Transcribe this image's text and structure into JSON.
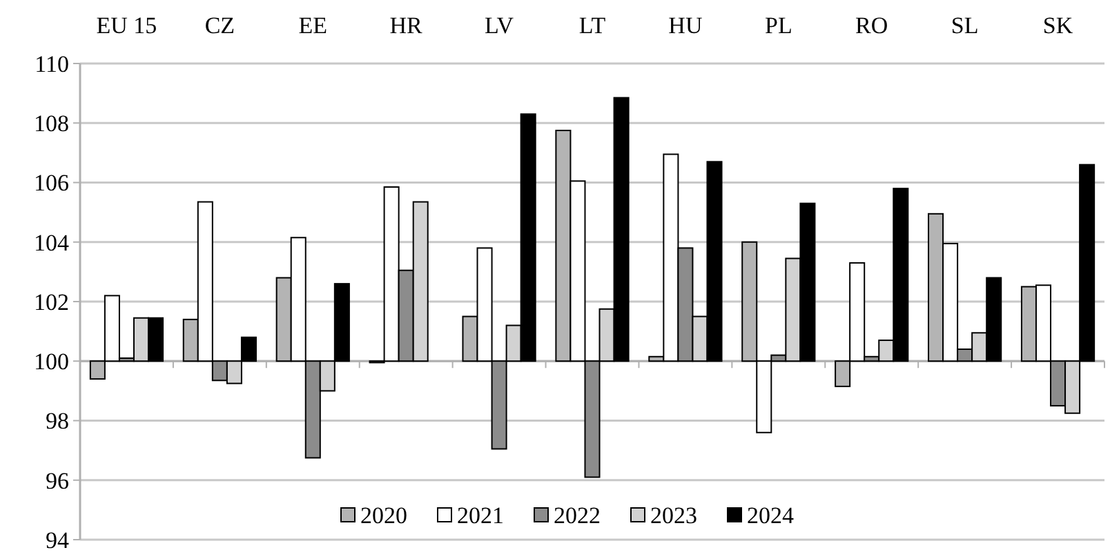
{
  "chart_data": {
    "type": "bar",
    "categories": [
      "EU 15",
      "CZ",
      "EE",
      "HR",
      "LV",
      "LT",
      "HU",
      "PL",
      "RO",
      "SL",
      "SK"
    ],
    "ylim": [
      94,
      110
    ],
    "yticks": [
      94,
      96,
      98,
      100,
      102,
      104,
      106,
      108,
      110
    ],
    "grid": "y",
    "legend": "bottom",
    "ref_lines": [
      {
        "axis": "y",
        "value": 100,
        "color": "#b0b0b0"
      }
    ],
    "series": [
      {
        "name": "2020",
        "color": "#b4b4b4",
        "base": [
          100,
          100,
          100,
          100,
          100,
          100,
          100,
          100,
          100,
          100,
          100
        ],
        "values": [
          -0.6,
          1.4,
          2.8,
          -0.05,
          1.5,
          7.75,
          0.15,
          4.0,
          -0.85,
          4.95,
          2.5
        ]
      },
      {
        "name": "2021",
        "color": "#ffffff",
        "base": [
          100,
          100,
          100,
          100,
          100,
          100,
          100,
          100,
          100,
          100,
          100
        ],
        "values": [
          2.2,
          5.35,
          4.15,
          5.85,
          3.8,
          6.05,
          6.95,
          -2.4,
          3.3,
          3.95,
          2.55
        ]
      },
      {
        "name": "2022",
        "color": "#8c8c8c",
        "base": [
          100,
          100,
          100,
          100,
          100,
          100,
          100,
          100,
          100,
          100,
          100
        ],
        "values": [
          0.1,
          -0.65,
          -3.25,
          3.05,
          -2.95,
          -3.9,
          3.8,
          0.2,
          0.15,
          0.4,
          -1.5
        ]
      },
      {
        "name": "2023",
        "color": "#d2d2d2",
        "base": [
          100,
          100,
          100,
          100,
          100,
          100,
          100,
          100,
          100,
          100,
          100
        ],
        "values": [
          1.45,
          -0.75,
          -1.0,
          5.35,
          1.2,
          1.75,
          1.5,
          3.45,
          0.7,
          0.95,
          -1.75
        ]
      },
      {
        "name": "2024",
        "color": "#000000",
        "base": [
          100,
          100,
          100,
          null,
          100,
          100,
          100,
          100,
          100,
          100,
          100
        ],
        "values": [
          1.45,
          0.8,
          2.6,
          null,
          8.3,
          8.85,
          6.7,
          5.3,
          5.8,
          2.8,
          6.6
        ]
      }
    ]
  }
}
